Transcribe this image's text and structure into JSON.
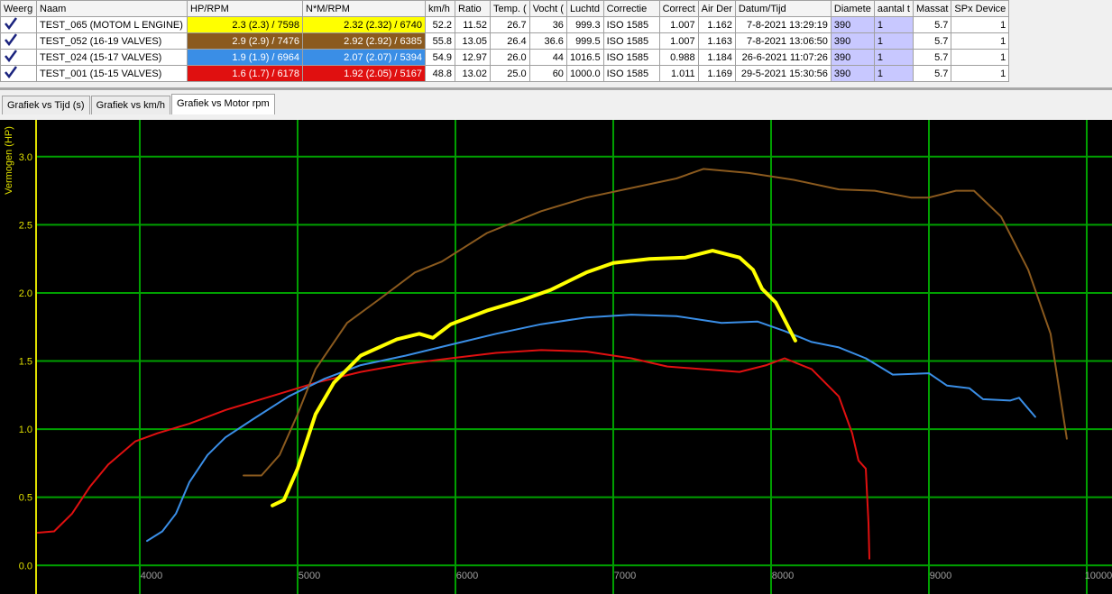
{
  "table": {
    "columns": [
      "Weerg",
      "Naam",
      "HP/RPM",
      "N*M/RPM",
      "km/h",
      "Ratio",
      "Temp. (",
      "Vocht (",
      "Luchtd",
      "Correctie",
      "Correct",
      "Air Der",
      "Datum/Tijd",
      "Diamete",
      "aantal t",
      "Massat",
      "SPx Device"
    ],
    "rows": [
      [
        "TEST_065 (MOTOM L ENGINE)",
        "2.3 (2.3) / 7598",
        "2.32 (2.32) / 6740",
        "52.2",
        "11.52",
        "26.7",
        "36",
        "999.3",
        "ISO 1585",
        "1.007",
        "1.162",
        "7-8-2021 13:29:19",
        "390",
        "1",
        "5.7",
        "1"
      ],
      [
        "TEST_052 (16-19 VALVES)",
        "2.9 (2.9) / 7476",
        "2.92 (2.92) / 6385",
        "55.8",
        "13.05",
        "26.4",
        "36.6",
        "999.5",
        "ISO 1585",
        "1.007",
        "1.163",
        "7-8-2021 13:06:50",
        "390",
        "1",
        "5.7",
        "1"
      ],
      [
        "TEST_024 (15-17 VALVES)",
        "1.9 (1.9) / 6964",
        "2.07 (2.07) / 5394",
        "54.9",
        "12.97",
        "26.0",
        "44",
        "1016.5",
        "ISO 1585",
        "0.988",
        "1.184",
        "26-6-2021 11:07:26",
        "390",
        "1",
        "5.7",
        "1"
      ],
      [
        "TEST_001 (15-15 VALVES)",
        "1.6 (1.7) / 6178",
        "1.92 (2.05) / 5167",
        "48.8",
        "13.02",
        "25.0",
        "60",
        "1000.0",
        "ISO 1585",
        "1.011",
        "1.169",
        "29-5-2021 15:30:56",
        "390",
        "1",
        "5.7",
        "1"
      ]
    ]
  },
  "tabs": [
    "Grafiek vs Tijd (s)",
    "Grafiek vs km/h",
    "Grafiek vs Motor rpm"
  ],
  "chart_data": {
    "type": "line",
    "y_label": "Vermogen (HP)",
    "xlim": [
      3343,
      10160
    ],
    "ylim": [
      -0.21,
      3.27
    ],
    "xticks": [
      4000,
      5000,
      6000,
      7000,
      8000,
      9000,
      10000
    ],
    "yticks": [
      {
        "value": 0,
        "label": "0.0"
      },
      0.5,
      {
        "value": 1,
        "label": "1.0"
      },
      1.5,
      {
        "value": 2,
        "label": "2.0"
      },
      2.5,
      {
        "value": 3,
        "label": "3.0"
      }
    ],
    "grid": true,
    "series": [
      {
        "color": "#ffff00",
        "width": 4,
        "x": [
          4840,
          4914,
          5000,
          5114,
          5229,
          5400,
          5629,
          5771,
          5857,
          5971,
          6200,
          6429,
          6600,
          6829,
          7000,
          7229,
          7457,
          7629,
          7800,
          7886,
          7943,
          8029,
          8154
        ],
        "values": [
          0.44,
          0.48,
          0.71,
          1.11,
          1.34,
          1.54,
          1.66,
          1.7,
          1.67,
          1.77,
          1.87,
          1.95,
          2.02,
          2.15,
          2.22,
          2.25,
          2.26,
          2.31,
          2.26,
          2.17,
          2.03,
          1.93,
          1.65
        ]
      },
      {
        "color": "#8b5a1e",
        "width": 2,
        "x": [
          4657,
          4771,
          4886,
          5000,
          5114,
          5314,
          5514,
          5743,
          5914,
          6200,
          6543,
          6829,
          7114,
          7400,
          7571,
          7857,
          8143,
          8429,
          8657,
          8886,
          9000,
          9171,
          9286,
          9457,
          9629,
          9771,
          9874
        ],
        "values": [
          0.66,
          0.66,
          0.81,
          1.11,
          1.44,
          1.78,
          1.95,
          2.15,
          2.23,
          2.44,
          2.6,
          2.7,
          2.77,
          2.84,
          2.91,
          2.88,
          2.83,
          2.76,
          2.75,
          2.7,
          2.7,
          2.75,
          2.75,
          2.56,
          2.17,
          1.7,
          0.93
        ]
      },
      {
        "color": "#3a8ee6",
        "width": 2,
        "x": [
          4046,
          4143,
          4229,
          4314,
          4429,
          4543,
          4714,
          4943,
          5171,
          5400,
          5686,
          5971,
          6257,
          6543,
          6829,
          7114,
          7400,
          7686,
          7914,
          8086,
          8257,
          8429,
          8600,
          8771,
          9000,
          9114,
          9257,
          9343,
          9514,
          9571,
          9674
        ],
        "values": [
          0.18,
          0.25,
          0.38,
          0.61,
          0.81,
          0.94,
          1.07,
          1.24,
          1.37,
          1.47,
          1.54,
          1.62,
          1.7,
          1.77,
          1.82,
          1.84,
          1.83,
          1.78,
          1.79,
          1.72,
          1.64,
          1.6,
          1.52,
          1.4,
          1.41,
          1.32,
          1.3,
          1.22,
          1.21,
          1.23,
          1.09
        ]
      },
      {
        "color": "#e01010",
        "width": 2,
        "x": [
          3354,
          3457,
          3571,
          3686,
          3800,
          3971,
          4114,
          4314,
          4543,
          4829,
          5114,
          5400,
          5686,
          5971,
          6257,
          6543,
          6829,
          7114,
          7343,
          7571,
          7800,
          7971,
          8086,
          8257,
          8429,
          8514,
          8554,
          8600,
          8617,
          8623
        ],
        "values": [
          0.24,
          0.25,
          0.38,
          0.58,
          0.74,
          0.91,
          0.97,
          1.04,
          1.14,
          1.24,
          1.34,
          1.42,
          1.48,
          1.52,
          1.56,
          1.58,
          1.57,
          1.52,
          1.46,
          1.44,
          1.42,
          1.47,
          1.52,
          1.44,
          1.24,
          0.97,
          0.77,
          0.71,
          0.31,
          0.05
        ]
      }
    ]
  }
}
